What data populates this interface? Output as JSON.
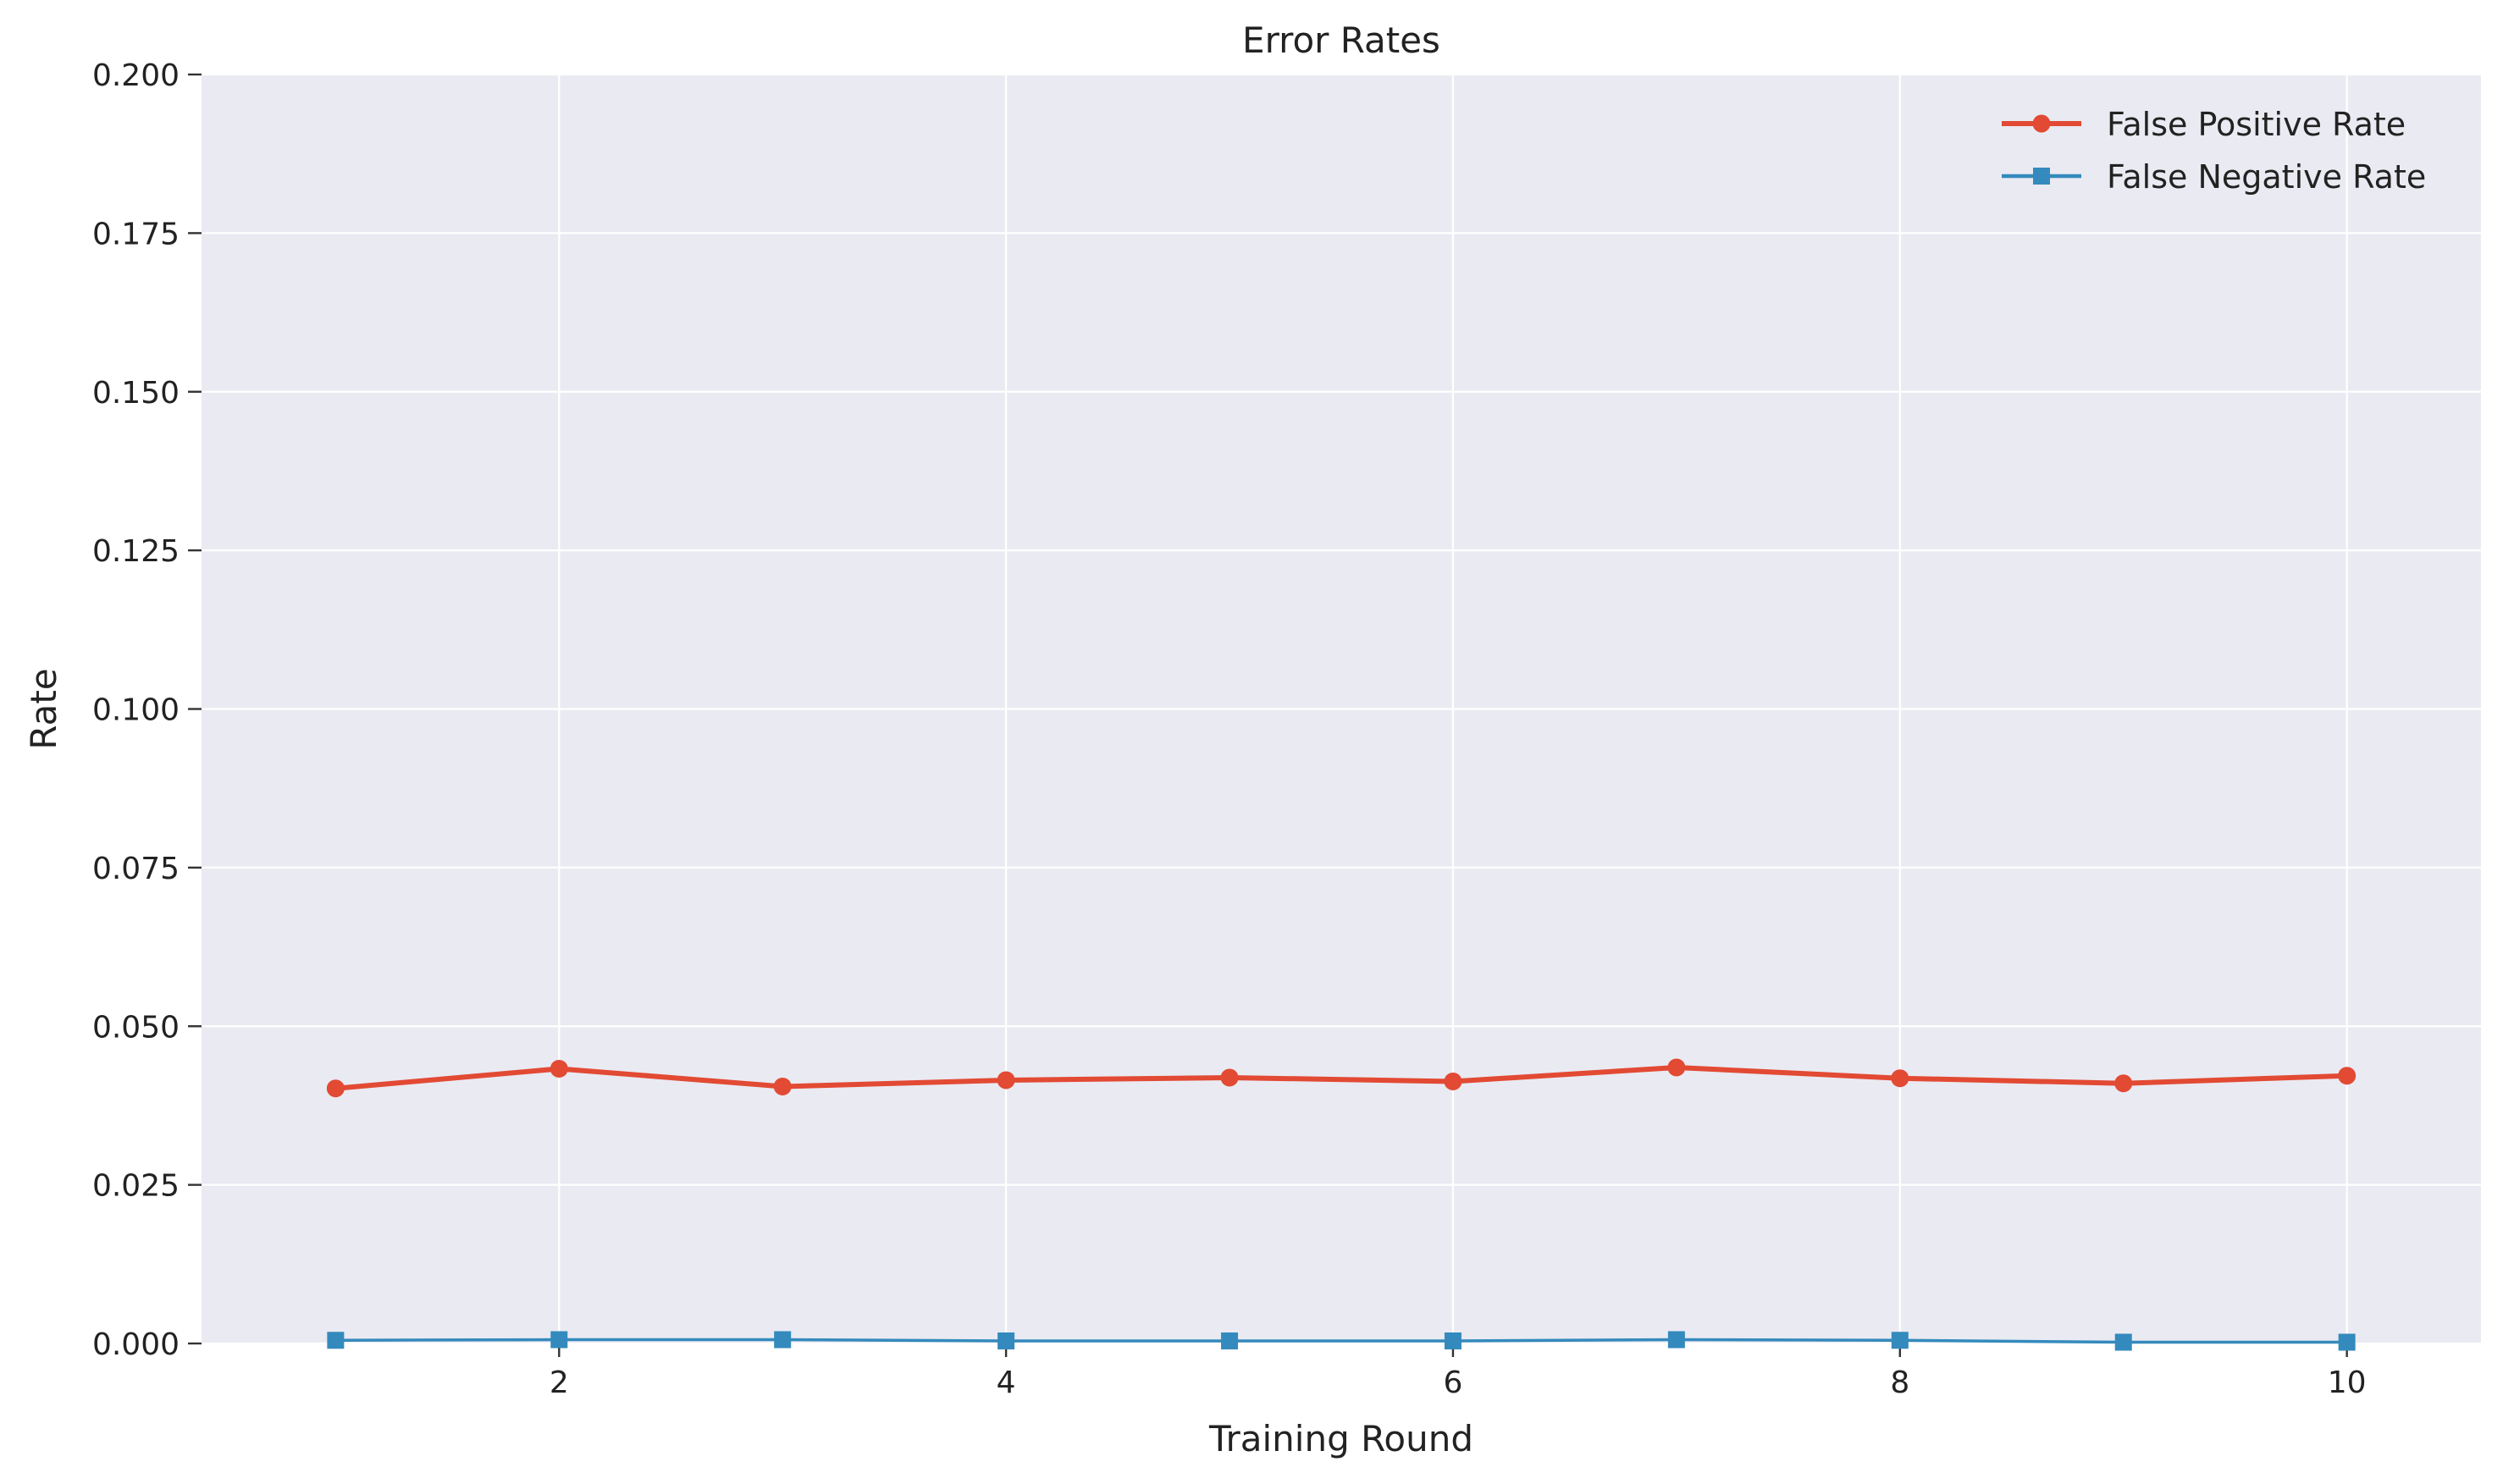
{
  "chart_data": {
    "type": "line",
    "title": "Error Rates",
    "xlabel": "Training Round",
    "ylabel": "Rate",
    "x": [
      1,
      2,
      3,
      4,
      5,
      6,
      7,
      8,
      9,
      10
    ],
    "xlim": [
      0.4,
      10.6
    ],
    "ylim": [
      0,
      0.2
    ],
    "xticks": [
      2,
      4,
      6,
      8,
      10
    ],
    "xtick_labels": [
      "2",
      "4",
      "6",
      "8",
      "10"
    ],
    "yticks": [
      0,
      0.025,
      0.05,
      0.075,
      0.1,
      0.125,
      0.15,
      0.175,
      0.2
    ],
    "ytick_labels": [
      "0.000",
      "0.025",
      "0.050",
      "0.075",
      "0.100",
      "0.125",
      "0.150",
      "0.175",
      "0.200"
    ],
    "grid": true,
    "legend_position": "top-right",
    "series": [
      {
        "name": "False Positive Rate",
        "color": "#e24a33",
        "marker": "circle",
        "values": [
          0.0402,
          0.0433,
          0.0405,
          0.0415,
          0.0419,
          0.0413,
          0.0435,
          0.0418,
          0.041,
          0.0422
        ]
      },
      {
        "name": "False Negative Rate",
        "color": "#348abd",
        "marker": "square",
        "values": [
          0.0005,
          0.0006,
          0.0006,
          0.0004,
          0.0004,
          0.0004,
          0.0006,
          0.0005,
          0.0002,
          0.0002
        ]
      }
    ],
    "colors": {
      "plot_background": "#eaeaf2",
      "grid": "#ffffff"
    }
  }
}
